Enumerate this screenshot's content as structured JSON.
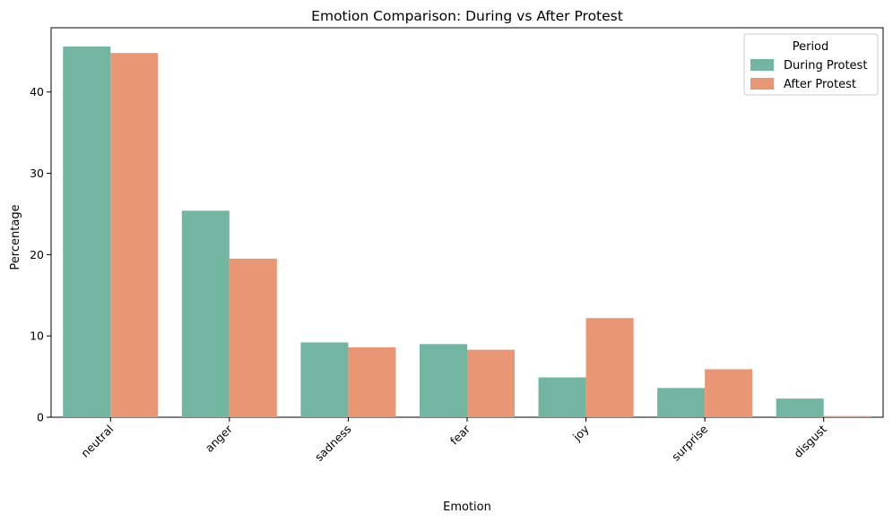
{
  "chart_data": {
    "type": "bar",
    "title": "Emotion Comparison: During vs After Protest",
    "xlabel": "Emotion",
    "ylabel": "Percentage",
    "categories": [
      "neutral",
      "anger",
      "sadness",
      "fear",
      "joy",
      "surprise",
      "disgust"
    ],
    "series": [
      {
        "name": "During Protest",
        "color": "#72b6a1",
        "values": [
          45.6,
          25.4,
          9.2,
          9.0,
          4.9,
          3.6,
          2.3
        ]
      },
      {
        "name": "After Protest",
        "color": "#e99675",
        "values": [
          44.8,
          19.5,
          8.6,
          8.3,
          12.2,
          5.9,
          0.15
        ]
      }
    ],
    "ylim": [
      0,
      47.9
    ],
    "yticks": [
      0,
      10,
      20,
      30,
      40
    ],
    "legend": {
      "title": "Period",
      "position": "top-right"
    },
    "grid": false
  }
}
